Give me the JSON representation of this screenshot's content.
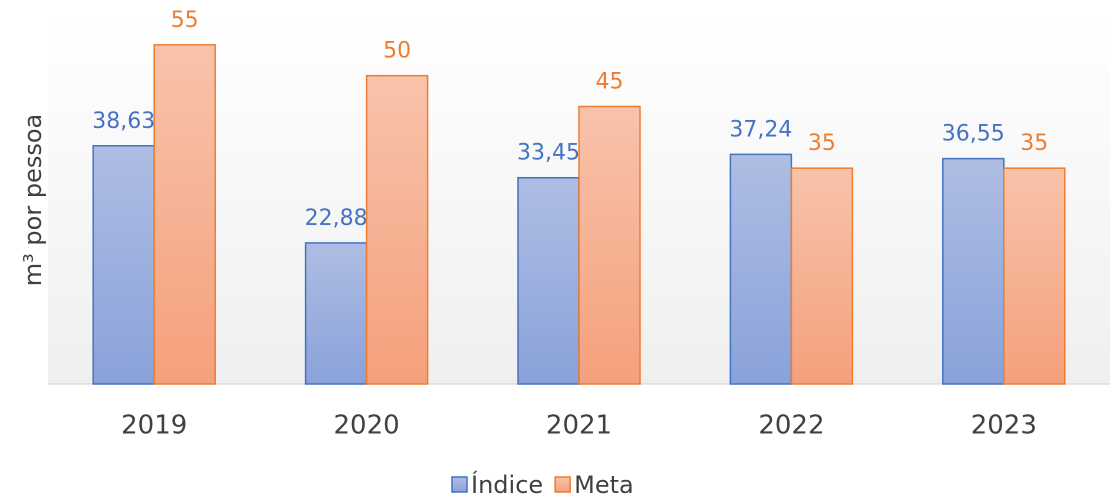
{
  "chart_data": {
    "type": "bar",
    "y_label": "m³ por pessoa",
    "categories": [
      "2019",
      "2020",
      "2021",
      "2022",
      "2023"
    ],
    "series": [
      {
        "name": "Índice",
        "color": "#4472c4",
        "values": [
          38.63,
          22.88,
          33.45,
          37.24,
          36.55
        ],
        "value_labels": [
          "38,63",
          "22,88",
          "33,45",
          "37,24",
          "36,55"
        ]
      },
      {
        "name": "Meta",
        "color": "#ed7d31",
        "values": [
          55,
          50,
          45,
          35,
          35
        ]
      }
    ],
    "ylim": [
      0,
      60
    ],
    "legend": "bottom"
  }
}
